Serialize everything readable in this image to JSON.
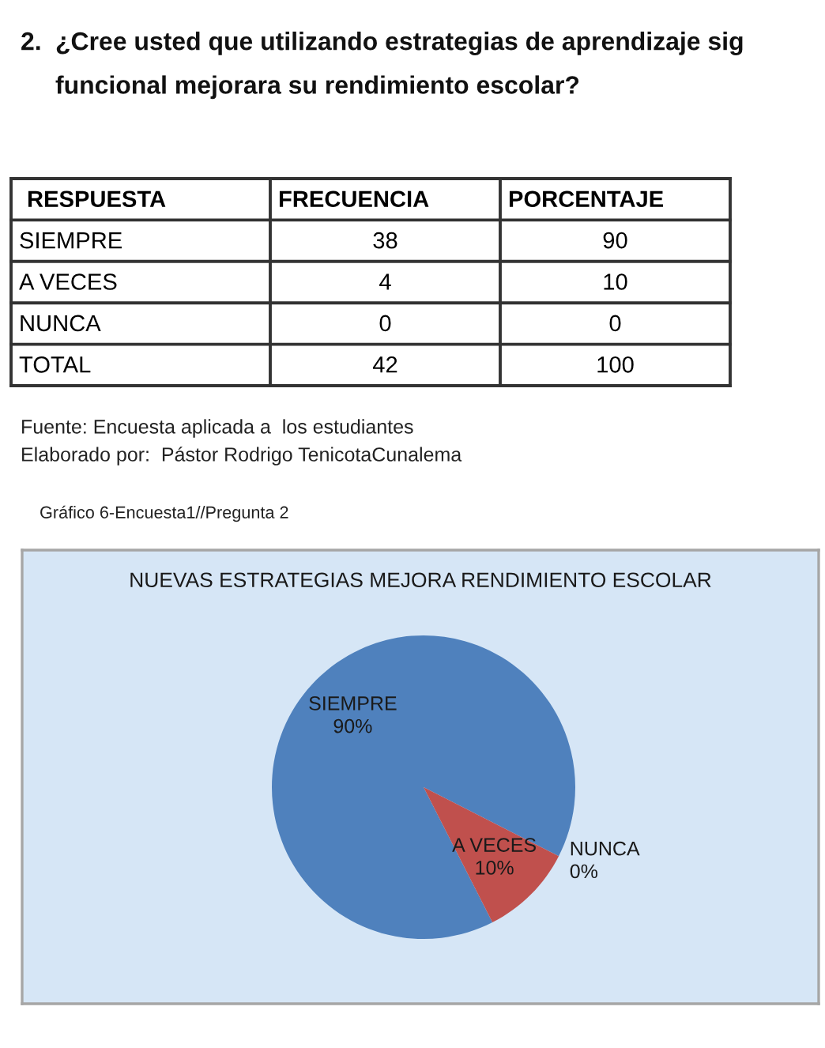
{
  "chart_data": [
    {
      "type": "other",
      "title": "2. ¿Cree usted que utilizando estrategias de aprendizaje sig funcional mejorara su rendimiento escolar?",
      "ylabel": "RESPUESTA",
      "categories": [
        "SIEMPRE",
        "A VECES",
        "NUNCA",
        "TOTAL"
      ],
      "series": [
        {
          "name": "FRECUENCIA",
          "values": [
            38,
            4,
            0,
            42
          ]
        },
        {
          "name": "PORCENTAJE",
          "values": [
            90,
            10,
            0,
            100
          ]
        }
      ],
      "data_labels": true,
      "annotations": [
        "Fuente: Encuesta aplicada a  los estudiantes",
        "Elaborado por:  Pástor Rodrigo TenicotaCunalema"
      ]
    },
    {
      "type": "pie",
      "title": "NUEVAS ESTRATEGIAS MEJORA RENDIMIENTO ESCOLAR",
      "categories": [
        "SIEMPRE",
        "A VECES",
        "NUNCA"
      ],
      "values": [
        90,
        10,
        0
      ],
      "colors": [
        "#4f81bd",
        "#c0504d",
        "#9bbb59"
      ],
      "value_labels": [
        "90%",
        "10%",
        "0%"
      ],
      "annotations": [
        "Gráfico 6-Encuesta1//Pregunta 2"
      ]
    }
  ]
}
